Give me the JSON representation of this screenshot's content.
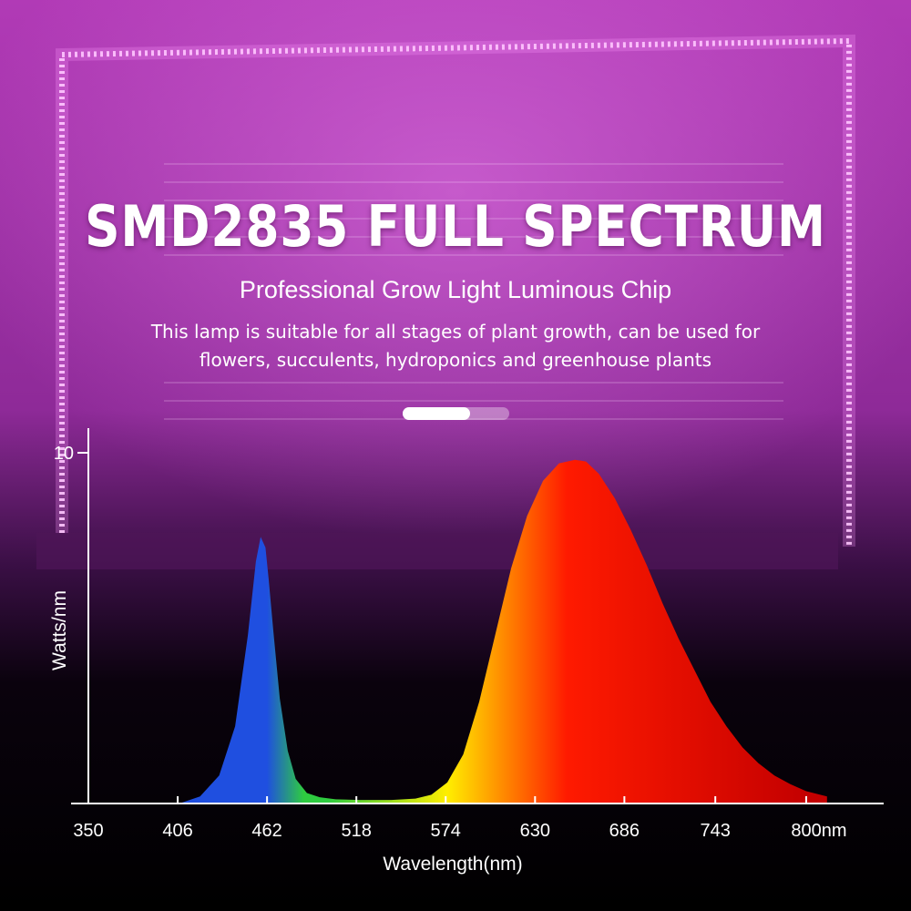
{
  "header": {
    "title": "SMD2835 FULL SPECTRUM",
    "subtitle": "Professional Grow Light Luminous Chip",
    "description_line1": "This lamp is suitable for all stages of plant growth, can be used for",
    "description_line2": "flowers, succulents, hydroponics and greenhouse plants"
  },
  "pager": {
    "slides": 2,
    "active": 1
  },
  "colors": {
    "background_magenta": "#b13ab6",
    "led_strip": "#ffd6ff",
    "blue_peak": "#1f4fe0",
    "green": "#2ecc40",
    "yellow": "#ffee00",
    "red": "#ff1a00",
    "text": "#ffffff"
  },
  "chart_data": {
    "type": "area",
    "title": "",
    "xlabel": "Wavelength(nm)",
    "ylabel": "Watts/nm",
    "x_ticks": [
      "350",
      "406",
      "462",
      "518",
      "574",
      "630",
      "686",
      "743",
      "800nm"
    ],
    "y_ticks": [
      "10"
    ],
    "xlim": [
      350,
      830
    ],
    "ylim": [
      0,
      10.5
    ],
    "series": [
      {
        "x": [
          407,
          420,
          432,
          442,
          450,
          455,
          458,
          461,
          463,
          466,
          470,
          475,
          480,
          487,
          495,
          505,
          520,
          540,
          555,
          565,
          575,
          585,
          595,
          605,
          615,
          625,
          635,
          645,
          655,
          662,
          670,
          680,
          690,
          700,
          710,
          720,
          730,
          740,
          750,
          760,
          770,
          780,
          790,
          800,
          813
        ],
        "y": [
          0.0,
          0.2,
          0.8,
          2.2,
          4.8,
          6.9,
          7.6,
          7.3,
          6.4,
          4.9,
          3.0,
          1.5,
          0.7,
          0.3,
          0.18,
          0.12,
          0.1,
          0.1,
          0.14,
          0.25,
          0.6,
          1.4,
          2.9,
          4.8,
          6.7,
          8.2,
          9.2,
          9.7,
          9.8,
          9.75,
          9.4,
          8.7,
          7.8,
          6.8,
          5.7,
          4.7,
          3.8,
          2.9,
          2.2,
          1.6,
          1.15,
          0.8,
          0.55,
          0.35,
          0.2
        ]
      }
    ],
    "grid": false,
    "legend": "none"
  }
}
